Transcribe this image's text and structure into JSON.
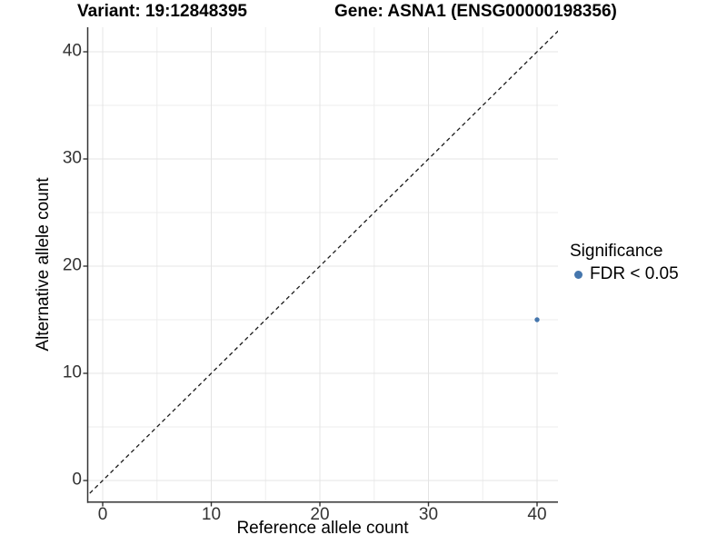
{
  "figure": {
    "title_left": "Variant: 19:12848395",
    "title_right": "Gene: ASNA1 (ENSG00000198356)"
  },
  "legend": {
    "title": "Significance",
    "items": [
      {
        "label": "FDR < 0.05",
        "marker": "filled-circle",
        "color": "#4576ad"
      }
    ]
  },
  "colors": {
    "background": "#ffffff",
    "grid_major": "#e4e4e4",
    "grid_minor": "#ededed",
    "axis_line": "#333333",
    "tick_mark": "#333333",
    "tick_label": "#333333",
    "title_text": "#000000",
    "reference_line": "#1a1a1a",
    "point": "#4576ad"
  },
  "chart_data": {
    "type": "scatter",
    "title": "Variant: 19:12848395 — Gene: ASNA1 (ENSG00000198356)",
    "xlabel": "Reference allele count",
    "ylabel": "Alternative allele count",
    "xlim": [
      -2,
      42
    ],
    "ylim": [
      -2,
      42
    ],
    "x_ticks": [
      0,
      10,
      20,
      30,
      40
    ],
    "y_ticks": [
      0,
      10,
      20,
      30,
      40
    ],
    "x_minor_ticks": [
      5,
      15,
      25,
      35
    ],
    "y_minor_ticks": [
      5,
      15,
      25,
      35
    ],
    "grid": "major+minor",
    "legend_position": "right",
    "series": [
      {
        "name": "FDR < 0.05",
        "color": "#4576ad",
        "points": [
          {
            "x": 40,
            "y": 15
          }
        ]
      }
    ],
    "reference_line": {
      "equation": "y = x",
      "style": "dashed",
      "color": "#1a1a1a"
    }
  }
}
